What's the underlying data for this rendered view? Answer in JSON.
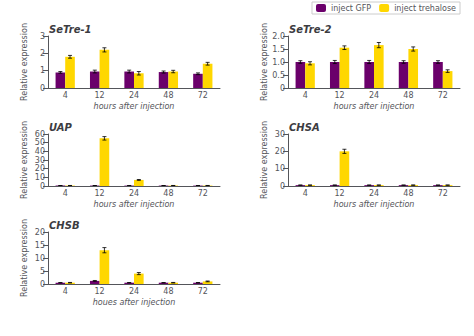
{
  "chart_data": [
    {
      "type": "bar",
      "title": "SeTre-1",
      "xlabel": "hours after injection",
      "ylabel": "Relative expression",
      "categories": [
        4,
        12,
        24,
        48,
        72
      ],
      "series": [
        {
          "name": "inject GFP",
          "color": "#6B006B",
          "values": [
            0.9,
            0.95,
            0.95,
            0.92,
            0.82
          ],
          "errors": [
            0.05,
            0.08,
            0.08,
            0.06,
            0.05
          ]
        },
        {
          "name": "inject trehalose",
          "color": "#FFD700",
          "values": [
            1.8,
            2.2,
            0.85,
            0.95,
            1.4
          ],
          "errors": [
            0.08,
            0.12,
            0.1,
            0.07,
            0.08
          ]
        }
      ],
      "ylim": [
        0,
        3
      ],
      "yticks": [
        0,
        1,
        2,
        3
      ],
      "grid": false
    },
    {
      "type": "bar",
      "title": "SeTre-2",
      "xlabel": "hours after injection",
      "ylabel": "Relative expression",
      "categories": [
        4,
        12,
        24,
        48,
        72
      ],
      "series": [
        {
          "name": "inject GFP",
          "color": "#6B006B",
          "values": [
            1.0,
            1.0,
            1.0,
            1.0,
            1.0
          ],
          "errors": [
            0.05,
            0.06,
            0.06,
            0.05,
            0.05
          ]
        },
        {
          "name": "inject trehalose",
          "color": "#FFD700",
          "values": [
            0.95,
            1.55,
            1.65,
            1.5,
            0.65
          ],
          "errors": [
            0.06,
            0.07,
            0.1,
            0.08,
            0.05
          ]
        }
      ],
      "ylim": [
        0,
        2
      ],
      "yticks": [
        0,
        0.5,
        {
          "value": 1,
          "label": "1.0"
        },
        1.5,
        {
          "value": 2,
          "label": "2.0"
        }
      ],
      "grid": false,
      "legend": "upper right"
    },
    {
      "type": "bar",
      "title": "UAP",
      "xlabel": "hours after injection",
      "ylabel": "Relative expression",
      "categories": [
        4,
        12,
        24,
        48,
        72
      ],
      "series": [
        {
          "name": "inject GFP",
          "color": "#6B006B",
          "values": [
            0.5,
            0.5,
            0.5,
            0.5,
            0.5
          ],
          "errors": [
            0.05,
            0.05,
            0.05,
            0.05,
            0.05
          ]
        },
        {
          "name": "inject trehalose",
          "color": "#FFD700",
          "values": [
            0.5,
            55.0,
            7.0,
            0.5,
            0.5
          ],
          "errors": [
            0.1,
            2.0,
            0.5,
            0.1,
            0.1
          ]
        }
      ],
      "ylim": [
        0,
        60
      ],
      "yticks": [
        0,
        10,
        20,
        30,
        40,
        50,
        60
      ],
      "grid": false
    },
    {
      "type": "bar",
      "title": "CHSA",
      "xlabel": "hours after injection",
      "ylabel": "Relative expression",
      "categories": [
        4,
        12,
        24,
        48,
        72
      ],
      "series": [
        {
          "name": "inject GFP",
          "color": "#6B006B",
          "values": [
            0.5,
            0.5,
            0.5,
            0.5,
            0.5
          ],
          "errors": [
            0.05,
            0.05,
            0.05,
            0.05,
            0.05
          ]
        },
        {
          "name": "inject trehalose",
          "color": "#FFD700",
          "values": [
            0.5,
            20.0,
            0.5,
            0.5,
            0.5
          ],
          "errors": [
            0.1,
            1.2,
            0.1,
            0.1,
            0.1
          ]
        }
      ],
      "ylim": [
        0,
        30
      ],
      "yticks": [
        0,
        10,
        20,
        30
      ],
      "grid": false
    },
    {
      "type": "bar",
      "title": "CHSB",
      "xlabel": "houes after injection",
      "ylabel": "Relative expression",
      "categories": [
        4,
        12,
        24,
        48,
        72
      ],
      "series": [
        {
          "name": "inject GFP",
          "color": "#6B006B",
          "values": [
            0.5,
            1.2,
            0.5,
            0.5,
            0.5
          ],
          "errors": [
            0.05,
            0.15,
            0.05,
            0.05,
            0.05
          ]
        },
        {
          "name": "inject trehalose",
          "color": "#FFD700",
          "values": [
            0.5,
            13.0,
            4.0,
            0.5,
            1.0
          ],
          "errors": [
            0.1,
            1.0,
            0.4,
            0.1,
            0.15
          ]
        }
      ],
      "ylim": [
        0,
        20
      ],
      "yticks": [
        0,
        5,
        10,
        15,
        20
      ],
      "grid": false
    }
  ]
}
